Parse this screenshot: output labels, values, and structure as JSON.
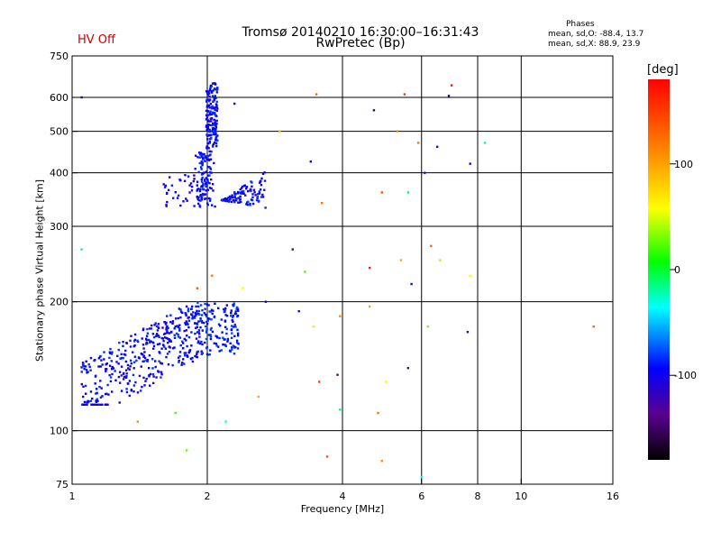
{
  "header": {
    "status_label": "HV Off",
    "title_line1": "Tromsø 20140210 16:30:00–16:31:43",
    "title_line2": "RwPretec (Bp)"
  },
  "phases_box": {
    "title": "Phases",
    "o_line": "mean, sd,O: -88.4, 13.7",
    "x_line": "mean, sd,X:  88.9, 23.9"
  },
  "colorbar": {
    "unit": "[deg]",
    "ticks": [
      {
        "value": 100,
        "label": "100"
      },
      {
        "value": 0,
        "label": "0"
      },
      {
        "value": -100,
        "label": "-100"
      }
    ],
    "range": [
      -180,
      180
    ]
  },
  "chart_data": {
    "type": "scatter",
    "title": "Tromsø 20140210 16:30:00–16:31:43",
    "subtitle": "RwPretec (Bp)",
    "xlabel": "Frequency [MHz]",
    "ylabel": "Stationary phase Virtual Height [km]",
    "x_scale": "log",
    "y_scale": "log",
    "xlim": [
      1,
      16
    ],
    "ylim": [
      75,
      750
    ],
    "x_ticks": [
      1,
      2,
      4,
      6,
      8,
      10,
      16
    ],
    "y_ticks": [
      75,
      100,
      200,
      300,
      400,
      500,
      600,
      750
    ],
    "x_gridlines": [
      2,
      4,
      6,
      8,
      10
    ],
    "y_gridlines": [
      100,
      200,
      300,
      400,
      500,
      600
    ],
    "grid": true,
    "color_scale": "phase [deg]",
    "traces": [
      {
        "freq_range": [
          1.05,
          1.95
        ],
        "height_range": [
          115,
          195
        ],
        "phase": -95,
        "count": 420
      },
      {
        "freq_range": [
          1.9,
          2.35
        ],
        "height_range": [
          150,
          200
        ],
        "phase": -90,
        "count": 150
      },
      {
        "freq_range": [
          1.85,
          2.15
        ],
        "height_range": [
          330,
          650
        ],
        "phase": -95,
        "count": 280
      },
      {
        "freq_range": [
          2.15,
          2.7
        ],
        "height_range": [
          300,
          450
        ],
        "phase": -95,
        "count": 110
      },
      {
        "freq_range": [
          1.6,
          1.95
        ],
        "height_range": [
          330,
          400
        ],
        "phase": -100,
        "count": 40
      }
    ],
    "scattered_points": [
      {
        "f": 1.05,
        "h": 600,
        "phase": -110
      },
      {
        "f": 1.05,
        "h": 265,
        "phase": -20
      },
      {
        "f": 1.4,
        "h": 105,
        "phase": 110
      },
      {
        "f": 1.7,
        "h": 110,
        "phase": 20
      },
      {
        "f": 1.8,
        "h": 90,
        "phase": 30
      },
      {
        "f": 1.9,
        "h": 215,
        "phase": 140
      },
      {
        "f": 2.05,
        "h": 230,
        "phase": 120
      },
      {
        "f": 2.2,
        "h": 105,
        "phase": -30
      },
      {
        "f": 2.3,
        "h": 580,
        "phase": -110
      },
      {
        "f": 2.4,
        "h": 215,
        "phase": 60
      },
      {
        "f": 2.6,
        "h": 120,
        "phase": 100
      },
      {
        "f": 2.7,
        "h": 200,
        "phase": -100
      },
      {
        "f": 2.9,
        "h": 500,
        "phase": 90
      },
      {
        "f": 3.1,
        "h": 265,
        "phase": -140
      },
      {
        "f": 3.2,
        "h": 190,
        "phase": -120
      },
      {
        "f": 3.3,
        "h": 235,
        "phase": 20
      },
      {
        "f": 3.4,
        "h": 425,
        "phase": -110
      },
      {
        "f": 3.45,
        "h": 175,
        "phase": 70
      },
      {
        "f": 3.5,
        "h": 610,
        "phase": 130
      },
      {
        "f": 3.55,
        "h": 130,
        "phase": 150
      },
      {
        "f": 3.6,
        "h": 340,
        "phase": 120
      },
      {
        "f": 3.7,
        "h": 87,
        "phase": 140
      },
      {
        "f": 3.9,
        "h": 135,
        "phase": -140
      },
      {
        "f": 3.95,
        "h": 185,
        "phase": 110
      },
      {
        "f": 3.95,
        "h": 112,
        "phase": -10
      },
      {
        "f": 4.6,
        "h": 240,
        "phase": 170
      },
      {
        "f": 4.6,
        "h": 195,
        "phase": 100
      },
      {
        "f": 4.7,
        "h": 560,
        "phase": -150
      },
      {
        "f": 4.8,
        "h": 110,
        "phase": 120
      },
      {
        "f": 4.9,
        "h": 85,
        "phase": 110
      },
      {
        "f": 4.9,
        "h": 360,
        "phase": 140
      },
      {
        "f": 5.0,
        "h": 130,
        "phase": 60
      },
      {
        "f": 5.3,
        "h": 500,
        "phase": 110
      },
      {
        "f": 5.4,
        "h": 250,
        "phase": 100
      },
      {
        "f": 5.5,
        "h": 610,
        "phase": 150
      },
      {
        "f": 5.6,
        "h": 360,
        "phase": -10
      },
      {
        "f": 5.6,
        "h": 140,
        "phase": -130
      },
      {
        "f": 5.7,
        "h": 220,
        "phase": -90
      },
      {
        "f": 5.9,
        "h": 470,
        "phase": 120
      },
      {
        "f": 6.0,
        "h": 78,
        "phase": -30
      },
      {
        "f": 6.1,
        "h": 400,
        "phase": -120
      },
      {
        "f": 6.2,
        "h": 175,
        "phase": 30
      },
      {
        "f": 6.3,
        "h": 270,
        "phase": 130
      },
      {
        "f": 6.5,
        "h": 460,
        "phase": -120
      },
      {
        "f": 6.6,
        "h": 250,
        "phase": 40
      },
      {
        "f": 6.9,
        "h": 605,
        "phase": -120
      },
      {
        "f": 7.0,
        "h": 640,
        "phase": 170
      },
      {
        "f": 7.6,
        "h": 170,
        "phase": -120
      },
      {
        "f": 7.7,
        "h": 420,
        "phase": -120
      },
      {
        "f": 7.7,
        "h": 230,
        "phase": 60
      },
      {
        "f": 8.3,
        "h": 470,
        "phase": -20
      },
      {
        "f": 14.5,
        "h": 175,
        "phase": 130
      }
    ]
  }
}
